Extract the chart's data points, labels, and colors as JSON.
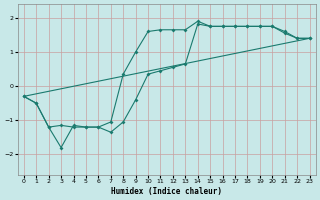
{
  "xlabel": "Humidex (Indice chaleur)",
  "background_color": "#c8e8e8",
  "grid_color": "#c8a0a0",
  "line_color": "#1a7a6e",
  "xlim": [
    -0.5,
    23.5
  ],
  "ylim": [
    -2.6,
    2.4
  ],
  "xticks": [
    0,
    1,
    2,
    3,
    4,
    5,
    6,
    7,
    8,
    9,
    10,
    11,
    12,
    13,
    14,
    15,
    16,
    17,
    18,
    19,
    20,
    21,
    22,
    23
  ],
  "yticks": [
    -2,
    -1,
    0,
    1,
    2
  ],
  "line1_x": [
    0,
    1,
    2,
    3,
    4,
    5,
    6,
    7,
    8,
    9,
    10,
    11,
    12,
    13,
    14,
    15,
    16,
    17,
    18,
    19,
    20,
    21,
    22,
    23
  ],
  "line1_y": [
    -0.3,
    -0.5,
    -1.2,
    -1.15,
    -1.2,
    -1.2,
    -1.2,
    -1.05,
    0.35,
    1.0,
    1.6,
    1.65,
    1.65,
    1.65,
    1.9,
    1.75,
    1.75,
    1.75,
    1.75,
    1.75,
    1.75,
    1.6,
    1.4,
    1.4
  ],
  "line2_x": [
    0,
    1,
    2,
    3,
    4,
    5,
    6,
    7,
    8,
    9,
    10,
    11,
    12,
    13,
    14,
    15,
    16,
    17,
    18,
    19,
    20,
    21,
    22,
    23
  ],
  "line2_y": [
    -0.3,
    -0.5,
    -1.2,
    -1.8,
    -1.15,
    -1.2,
    -1.2,
    -1.35,
    -1.05,
    -0.4,
    0.35,
    0.45,
    0.55,
    0.65,
    1.82,
    1.75,
    1.75,
    1.75,
    1.75,
    1.75,
    1.75,
    1.55,
    1.4,
    1.4
  ],
  "line3_x": [
    0,
    23
  ],
  "line3_y": [
    -0.3,
    1.4
  ]
}
